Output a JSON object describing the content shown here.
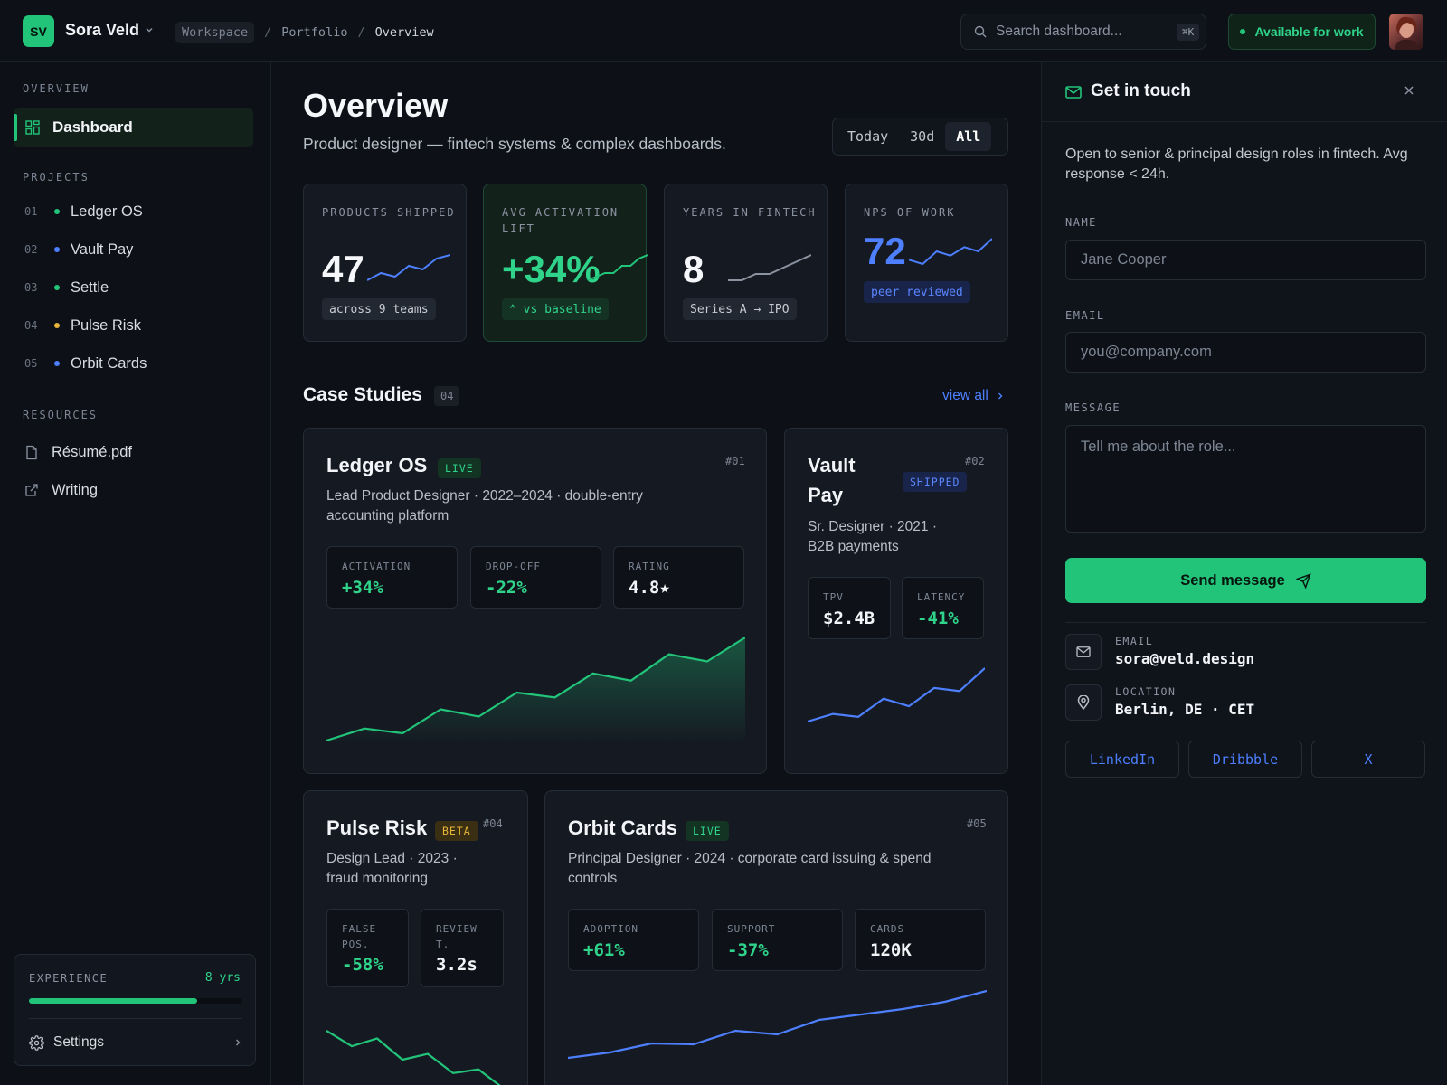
{
  "topbar": {
    "logo": "SV",
    "name": "Sora Veld",
    "breadcrumb": [
      "Workspace",
      "Portfolio",
      "Overview"
    ],
    "search_placeholder": "Search dashboard...",
    "search_shortcut": "⌘K",
    "status": "Available for work"
  },
  "sidebar": {
    "overview_label": "OVERVIEW",
    "dashboard": "Dashboard",
    "projects_label": "PROJECTS",
    "projects": [
      {
        "num": "01",
        "name": "Ledger OS",
        "color": "#22c47a"
      },
      {
        "num": "02",
        "name": "Vault Pay",
        "color": "#4d7fff"
      },
      {
        "num": "03",
        "name": "Settle",
        "color": "#22c47a"
      },
      {
        "num": "04",
        "name": "Pulse Risk",
        "color": "#e8b53a"
      },
      {
        "num": "05",
        "name": "Orbit Cards",
        "color": "#4d7fff"
      }
    ],
    "resources_label": "RESOURCES",
    "resources": [
      "Résumé.pdf",
      "Writing"
    ],
    "experience": {
      "label": "EXPERIENCE",
      "value": "8 yrs",
      "progress": 0.79
    },
    "settings": "Settings"
  },
  "main": {
    "title": "Overview",
    "subtitle": "Product designer — fintech systems & complex dashboards.",
    "ranges": [
      "Today",
      "30d",
      "All"
    ],
    "active_range": "All",
    "stats": [
      {
        "label": "PRODUCTS SHIPPED",
        "value": "47",
        "chip": "across 9 teams",
        "spark": [
          1,
          3,
          2,
          5,
          4,
          7,
          8
        ]
      },
      {
        "label": "AVG ACTIVATION LIFT",
        "value": "+34%",
        "chip": "⌃ vs baseline",
        "spark": [
          1,
          2,
          3,
          3,
          5,
          5,
          7,
          8
        ]
      },
      {
        "label": "YEARS IN FINTECH",
        "value": "8",
        "chip": "Series A → IPO",
        "spark": [
          1,
          1,
          2,
          2,
          3,
          4,
          5
        ]
      },
      {
        "label": "NPS OF WORK",
        "value": "72",
        "chip": "peer reviewed",
        "spark": [
          3,
          2,
          5,
          4,
          6,
          5,
          8
        ]
      }
    ],
    "case_studies_title": "Case Studies",
    "case_studies_count": "04",
    "view_all": "view all",
    "cases": {
      "ledger": {
        "name": "Ledger OS",
        "badge": "LIVE",
        "num": "#01",
        "desc": "Lead Product Designer · 2022–2024 · double-entry accounting platform",
        "metrics": [
          {
            "label": "ACTIVATION",
            "value": "+34%"
          },
          {
            "label": "DROP-OFF",
            "value": "-22%"
          },
          {
            "label": "RATING",
            "value": "4.8★"
          }
        ],
        "trend": [
          1,
          2,
          1.6,
          3.6,
          3,
          5,
          4.6,
          6.6,
          6,
          8.2,
          7.6,
          9.6
        ]
      },
      "vault": {
        "name": "Vault Pay",
        "badge": "SHIPPED",
        "num": "#02",
        "desc": "Sr. Designer · 2021 · B2B payments",
        "metrics": [
          {
            "label": "TPV",
            "value": "$2.4B"
          },
          {
            "label": "LATENCY",
            "value": "-41%"
          }
        ],
        "trend": [
          1,
          2,
          1.6,
          4,
          3,
          5.4,
          5,
          8
        ]
      },
      "pulse": {
        "name": "Pulse Risk",
        "badge": "BETA",
        "num": "#04",
        "desc": "Design Lead · 2023 · fraud monitoring",
        "metrics": [
          {
            "label": "FALSE POS.",
            "value": "-58%"
          },
          {
            "label": "REVIEW T.",
            "value": "3.2s"
          }
        ],
        "trend": [
          8,
          6.4,
          7.2,
          5,
          5.6,
          3.6,
          4,
          2
        ]
      },
      "orbit": {
        "name": "Orbit Cards",
        "badge": "LIVE",
        "num": "#05",
        "desc": "Principal Designer · 2024 · corporate card issuing & spend controls",
        "metrics": [
          {
            "label": "ADOPTION",
            "value": "+61%"
          },
          {
            "label": "SUPPORT",
            "value": "-37%"
          },
          {
            "label": "CARDS",
            "value": "120K"
          }
        ],
        "trend": [
          1,
          1.6,
          2.6,
          2.5,
          4,
          3.6,
          5.2,
          5.8,
          6.4,
          7.2,
          8.4
        ]
      }
    }
  },
  "contact": {
    "title": "Get in touch",
    "intro": "Open to senior & principal design roles in fintech. Avg response < 24h.",
    "name_label": "NAME",
    "name_placeholder": "Jane Cooper",
    "email_label": "EMAIL",
    "email_placeholder": "you@company.com",
    "message_label": "MESSAGE",
    "message_placeholder": "Tell me about the role...",
    "send": "Send message",
    "email_info_label": "EMAIL",
    "email_info": "sora@veld.design",
    "location_label": "LOCATION",
    "location": "Berlin, DE · CET",
    "socials": [
      "LinkedIn",
      "Dribbble",
      "X"
    ]
  },
  "colors": {
    "accent_green": "#22c47a",
    "accent_blue": "#4d7fff",
    "accent_amber": "#e8b53a",
    "background": "#0d1117"
  }
}
